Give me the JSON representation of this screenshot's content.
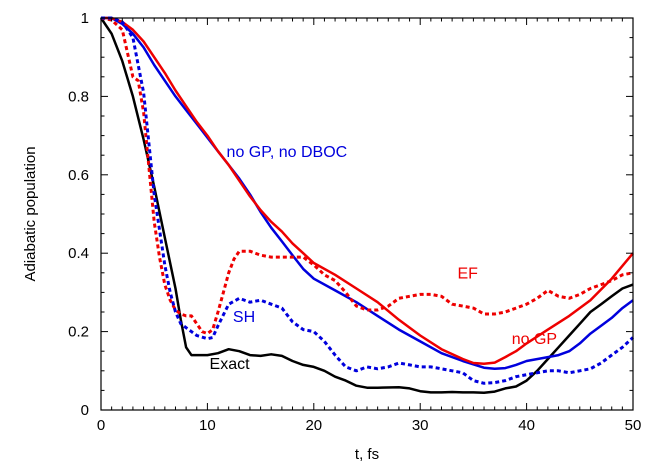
{
  "chart_data": {
    "type": "line",
    "title": "",
    "xlabel": "t, fs",
    "ylabel": "Adiabatic population",
    "xlim": [
      0,
      50
    ],
    "ylim": [
      0,
      1
    ],
    "xticks": [
      0,
      10,
      20,
      30,
      40,
      50
    ],
    "xtick_labels": [
      "0",
      "10",
      "20",
      "30",
      "40",
      "50"
    ],
    "yticks": [
      0,
      0.2,
      0.4,
      0.6,
      0.8,
      1
    ],
    "ytick_labels": [
      "0",
      "0.2",
      "0.4",
      "0.6",
      "0.8",
      "1"
    ],
    "grid": false,
    "legend": "none",
    "series": [
      {
        "name": "Exact",
        "color": "#000000",
        "style": "solid",
        "points": [
          [
            0,
            1.0
          ],
          [
            1,
            0.96
          ],
          [
            2,
            0.89
          ],
          [
            3,
            0.8
          ],
          [
            4,
            0.69
          ],
          [
            5,
            0.57
          ],
          [
            6,
            0.44
          ],
          [
            7,
            0.31
          ],
          [
            7.5,
            0.23
          ],
          [
            8,
            0.16
          ],
          [
            8.5,
            0.14
          ],
          [
            9,
            0.14
          ],
          [
            10,
            0.14
          ],
          [
            11,
            0.145
          ],
          [
            12,
            0.155
          ],
          [
            13,
            0.15
          ],
          [
            14,
            0.14
          ],
          [
            15,
            0.138
          ],
          [
            16,
            0.142
          ],
          [
            17,
            0.138
          ],
          [
            18,
            0.125
          ],
          [
            19,
            0.115
          ],
          [
            20,
            0.11
          ],
          [
            21,
            0.1
          ],
          [
            22,
            0.085
          ],
          [
            23,
            0.075
          ],
          [
            24,
            0.062
          ],
          [
            25,
            0.057
          ],
          [
            26,
            0.057
          ],
          [
            28,
            0.058
          ],
          [
            29,
            0.055
          ],
          [
            30,
            0.048
          ],
          [
            31,
            0.045
          ],
          [
            32,
            0.045
          ],
          [
            33,
            0.046
          ],
          [
            34,
            0.045
          ],
          [
            35,
            0.045
          ],
          [
            36,
            0.044
          ],
          [
            37,
            0.047
          ],
          [
            38,
            0.055
          ],
          [
            39,
            0.06
          ],
          [
            40,
            0.075
          ],
          [
            41,
            0.1
          ],
          [
            42,
            0.13
          ],
          [
            43,
            0.16
          ],
          [
            44,
            0.19
          ],
          [
            45,
            0.22
          ],
          [
            46,
            0.25
          ],
          [
            47,
            0.27
          ],
          [
            48,
            0.29
          ],
          [
            49,
            0.31
          ],
          [
            50,
            0.32
          ]
        ]
      },
      {
        "name": "no GP, no DBOC",
        "color": "#0000dd",
        "style": "solid",
        "points": [
          [
            0,
            1.0
          ],
          [
            1,
            1.0
          ],
          [
            2,
            0.985
          ],
          [
            3,
            0.96
          ],
          [
            4,
            0.925
          ],
          [
            5,
            0.88
          ],
          [
            6,
            0.84
          ],
          [
            7,
            0.8
          ],
          [
            8,
            0.765
          ],
          [
            9,
            0.73
          ],
          [
            10,
            0.695
          ],
          [
            11,
            0.66
          ],
          [
            12,
            0.625
          ],
          [
            13,
            0.59
          ],
          [
            14,
            0.55
          ],
          [
            15,
            0.505
          ],
          [
            16,
            0.465
          ],
          [
            17,
            0.43
          ],
          [
            18,
            0.395
          ],
          [
            19,
            0.36
          ],
          [
            20,
            0.335
          ],
          [
            22,
            0.305
          ],
          [
            24,
            0.275
          ],
          [
            26,
            0.24
          ],
          [
            28,
            0.205
          ],
          [
            30,
            0.175
          ],
          [
            32,
            0.145
          ],
          [
            34,
            0.125
          ],
          [
            36,
            0.108
          ],
          [
            37,
            0.105
          ],
          [
            38,
            0.107
          ],
          [
            39,
            0.115
          ],
          [
            40,
            0.125
          ],
          [
            42,
            0.135
          ],
          [
            43,
            0.14
          ],
          [
            44,
            0.15
          ],
          [
            45,
            0.17
          ],
          [
            46,
            0.195
          ],
          [
            47,
            0.215
          ],
          [
            48,
            0.235
          ],
          [
            49,
            0.26
          ],
          [
            50,
            0.28
          ]
        ]
      },
      {
        "name": "no GP",
        "color": "#ee0000",
        "style": "solid",
        "points": [
          [
            0,
            1.0
          ],
          [
            1,
            1.0
          ],
          [
            2,
            0.99
          ],
          [
            3,
            0.97
          ],
          [
            4,
            0.94
          ],
          [
            5,
            0.9
          ],
          [
            6,
            0.86
          ],
          [
            7,
            0.815
          ],
          [
            8,
            0.775
          ],
          [
            9,
            0.735
          ],
          [
            10,
            0.7
          ],
          [
            11,
            0.66
          ],
          [
            12,
            0.625
          ],
          [
            13,
            0.585
          ],
          [
            14,
            0.545
          ],
          [
            15,
            0.51
          ],
          [
            16,
            0.48
          ],
          [
            17,
            0.455
          ],
          [
            18,
            0.425
          ],
          [
            19,
            0.4
          ],
          [
            20,
            0.375
          ],
          [
            22,
            0.345
          ],
          [
            24,
            0.31
          ],
          [
            26,
            0.275
          ],
          [
            28,
            0.23
          ],
          [
            30,
            0.19
          ],
          [
            32,
            0.155
          ],
          [
            34,
            0.13
          ],
          [
            35,
            0.12
          ],
          [
            36,
            0.118
          ],
          [
            37,
            0.121
          ],
          [
            38,
            0.135
          ],
          [
            39,
            0.15
          ],
          [
            40,
            0.17
          ],
          [
            42,
            0.205
          ],
          [
            44,
            0.24
          ],
          [
            46,
            0.28
          ],
          [
            48,
            0.335
          ],
          [
            50,
            0.4
          ]
        ]
      },
      {
        "name": "EF",
        "color": "#ee0000",
        "style": "dotted",
        "points": [
          [
            0,
            1.0
          ],
          [
            1,
            0.995
          ],
          [
            2,
            0.97
          ],
          [
            3,
            0.85
          ],
          [
            3.5,
            0.84
          ],
          [
            4,
            0.76
          ],
          [
            4.5,
            0.62
          ],
          [
            5,
            0.48
          ],
          [
            5.5,
            0.39
          ],
          [
            6,
            0.32
          ],
          [
            6.5,
            0.28
          ],
          [
            7,
            0.255
          ],
          [
            7.5,
            0.245
          ],
          [
            8,
            0.24
          ],
          [
            8.5,
            0.24
          ],
          [
            9,
            0.22
          ],
          [
            9.5,
            0.2
          ],
          [
            10,
            0.195
          ],
          [
            10.5,
            0.205
          ],
          [
            11,
            0.25
          ],
          [
            11.5,
            0.3
          ],
          [
            12,
            0.35
          ],
          [
            12.5,
            0.385
          ],
          [
            13,
            0.405
          ],
          [
            14,
            0.405
          ],
          [
            15,
            0.395
          ],
          [
            16,
            0.39
          ],
          [
            17,
            0.39
          ],
          [
            18,
            0.39
          ],
          [
            19,
            0.39
          ],
          [
            20,
            0.37
          ],
          [
            21,
            0.345
          ],
          [
            22,
            0.33
          ],
          [
            23,
            0.3
          ],
          [
            24,
            0.265
          ],
          [
            25,
            0.255
          ],
          [
            26,
            0.255
          ],
          [
            27,
            0.265
          ],
          [
            28,
            0.285
          ],
          [
            29,
            0.29
          ],
          [
            30,
            0.295
          ],
          [
            31,
            0.295
          ],
          [
            32,
            0.29
          ],
          [
            33,
            0.27
          ],
          [
            34,
            0.265
          ],
          [
            35,
            0.26
          ],
          [
            36,
            0.245
          ],
          [
            37,
            0.245
          ],
          [
            38,
            0.25
          ],
          [
            39,
            0.26
          ],
          [
            40,
            0.27
          ],
          [
            41,
            0.285
          ],
          [
            42,
            0.305
          ],
          [
            43,
            0.29
          ],
          [
            44,
            0.285
          ],
          [
            45,
            0.295
          ],
          [
            46,
            0.31
          ],
          [
            47,
            0.32
          ],
          [
            48,
            0.33
          ],
          [
            49,
            0.345
          ],
          [
            50,
            0.35
          ]
        ]
      },
      {
        "name": "SH",
        "color": "#0000dd",
        "style": "dotted",
        "points": [
          [
            0,
            1.0
          ],
          [
            1,
            1.0
          ],
          [
            2,
            0.99
          ],
          [
            2.5,
            0.97
          ],
          [
            3,
            0.95
          ],
          [
            3.5,
            0.88
          ],
          [
            4,
            0.81
          ],
          [
            4.5,
            0.68
          ],
          [
            5,
            0.55
          ],
          [
            5.5,
            0.46
          ],
          [
            6,
            0.37
          ],
          [
            6.5,
            0.3
          ],
          [
            7,
            0.25
          ],
          [
            7.5,
            0.22
          ],
          [
            8,
            0.21
          ],
          [
            8.5,
            0.2
          ],
          [
            9,
            0.19
          ],
          [
            10,
            0.182
          ],
          [
            10.5,
            0.185
          ],
          [
            11,
            0.215
          ],
          [
            12,
            0.27
          ],
          [
            13,
            0.285
          ],
          [
            14,
            0.275
          ],
          [
            15,
            0.28
          ],
          [
            16,
            0.27
          ],
          [
            17,
            0.26
          ],
          [
            18,
            0.225
          ],
          [
            19,
            0.205
          ],
          [
            20,
            0.2
          ],
          [
            21,
            0.175
          ],
          [
            22,
            0.14
          ],
          [
            23,
            0.11
          ],
          [
            24,
            0.1
          ],
          [
            25,
            0.11
          ],
          [
            26,
            0.105
          ],
          [
            27,
            0.11
          ],
          [
            28,
            0.12
          ],
          [
            29,
            0.115
          ],
          [
            30,
            0.11
          ],
          [
            31,
            0.11
          ],
          [
            32,
            0.105
          ],
          [
            33,
            0.1
          ],
          [
            34,
            0.095
          ],
          [
            35,
            0.075
          ],
          [
            36,
            0.068
          ],
          [
            37,
            0.07
          ],
          [
            38,
            0.075
          ],
          [
            39,
            0.085
          ],
          [
            40,
            0.09
          ],
          [
            41,
            0.095
          ],
          [
            42,
            0.1
          ],
          [
            43,
            0.1
          ],
          [
            44,
            0.095
          ],
          [
            45,
            0.1
          ],
          [
            46,
            0.105
          ],
          [
            47,
            0.12
          ],
          [
            48,
            0.14
          ],
          [
            49,
            0.16
          ],
          [
            50,
            0.185
          ]
        ]
      }
    ],
    "annotations": [
      {
        "text": "no GP, no DBOC",
        "x": 11.8,
        "y": 0.645,
        "color": "#0000dd"
      },
      {
        "text": "EF",
        "x": 33.5,
        "y": 0.335,
        "color": "#ee0000"
      },
      {
        "text": "SH",
        "x": 12.4,
        "y": 0.225,
        "color": "#0000dd"
      },
      {
        "text": "no GP",
        "x": 38.6,
        "y": 0.168,
        "color": "#ee0000"
      },
      {
        "text": "Exact",
        "x": 10.2,
        "y": 0.105,
        "color": "#000000"
      }
    ]
  }
}
